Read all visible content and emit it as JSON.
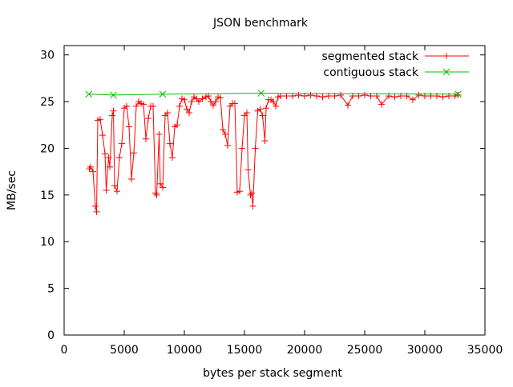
{
  "chart_data": {
    "type": "line",
    "title": "JSON benchmark",
    "xlabel": "bytes per stack segment",
    "ylabel": "MB/sec",
    "xlim": [
      0,
      35000
    ],
    "ylim": [
      0,
      31
    ],
    "xticks": [
      0,
      5000,
      10000,
      15000,
      20000,
      25000,
      30000,
      35000
    ],
    "yticks": [
      0,
      5,
      10,
      15,
      20,
      25,
      30
    ],
    "grid": false,
    "legend_position": "top-right",
    "series": [
      {
        "name": "segmented stack",
        "color": "#ff0000",
        "marker": "plus",
        "x": [
          2100,
          2200,
          2400,
          2600,
          2700,
          2800,
          3000,
          3200,
          3400,
          3500,
          3700,
          3800,
          4000,
          4100,
          4200,
          4400,
          4600,
          4800,
          5000,
          5200,
          5400,
          5600,
          5800,
          6000,
          6200,
          6400,
          6600,
          6800,
          7000,
          7200,
          7400,
          7600,
          7700,
          7900,
          8000,
          8200,
          8400,
          8600,
          8800,
          9000,
          9200,
          9400,
          9600,
          9800,
          10000,
          10200,
          10400,
          10600,
          10800,
          11000,
          11200,
          11500,
          11800,
          12000,
          12200,
          12400,
          12600,
          12800,
          13000,
          13200,
          13400,
          13600,
          13800,
          14000,
          14200,
          14400,
          14600,
          14800,
          15000,
          15200,
          15300,
          15500,
          15600,
          15700,
          15900,
          16100,
          16300,
          16500,
          16700,
          16800,
          17000,
          17200,
          17400,
          17600,
          17800,
          18000,
          18500,
          19000,
          19500,
          20000,
          20500,
          21000,
          21500,
          22000,
          22500,
          23000,
          23600,
          24000,
          24500,
          25000,
          25500,
          26000,
          26400,
          27000,
          27500,
          28000,
          28500,
          29000,
          29500,
          30000,
          30500,
          31000,
          31500,
          32000,
          32500,
          32768
        ],
        "y": [
          17.8,
          18,
          17.5,
          13.8,
          13.2,
          23,
          23.1,
          21.4,
          19.4,
          15.5,
          19,
          18,
          23.5,
          24,
          16,
          15.4,
          19,
          20.5,
          24.3,
          24.5,
          22.3,
          16.7,
          19.5,
          24.5,
          25,
          24.8,
          24.7,
          21,
          23.2,
          24.5,
          24.5,
          15.2,
          15,
          21.5,
          16.2,
          15.8,
          23.5,
          23.8,
          20.5,
          19,
          22.3,
          22.5,
          24.5,
          25.3,
          25.2,
          24.2,
          23.8,
          25,
          25.5,
          25.3,
          25,
          25.3,
          25.5,
          25.6,
          25,
          24.6,
          25,
          25.5,
          25.4,
          22,
          21.5,
          20.3,
          24.5,
          24.8,
          24.8,
          15.3,
          15.4,
          20,
          23.5,
          23.8,
          17.7,
          15,
          15.2,
          13.8,
          20,
          24,
          24.2,
          23.5,
          20.8,
          24.3,
          25.2,
          25.2,
          25,
          24.5,
          25.5,
          25.6,
          25.6,
          25.6,
          25.7,
          25.6,
          25.7,
          25.6,
          25.5,
          25.6,
          25.6,
          25.7,
          24.6,
          25.6,
          25.6,
          25.7,
          25.6,
          25.6,
          24.7,
          25.6,
          25.5,
          25.6,
          25.6,
          25.2,
          25.7,
          25.6,
          25.6,
          25.6,
          25.5,
          25.6,
          25.6,
          25.7
        ]
      },
      {
        "name": "contiguous stack",
        "color": "#00c000",
        "marker": "cross",
        "x": [
          2048,
          4096,
          8192,
          16384,
          32768
        ],
        "y": [
          25.8,
          25.7,
          25.8,
          25.9,
          25.8
        ]
      }
    ]
  }
}
